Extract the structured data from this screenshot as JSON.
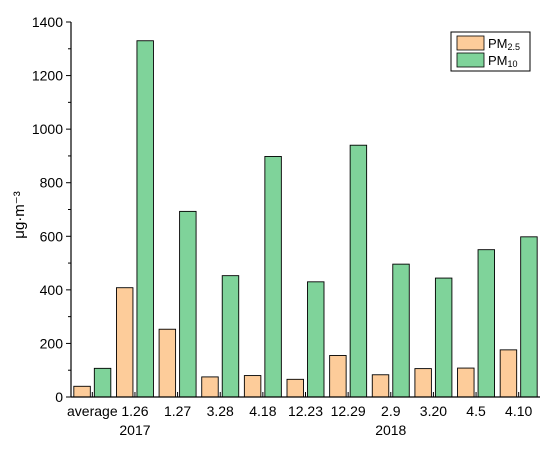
{
  "chart_data": {
    "type": "bar",
    "categories": [
      "average",
      "1.26",
      "1.27",
      "3.28",
      "4.18",
      "12.23",
      "12.29",
      "2.9",
      "3.20",
      "4.5",
      "4.10"
    ],
    "year_labels": [
      "2017",
      "2018"
    ],
    "ylabel": "μg·m⁻³",
    "ylim": [
      0,
      1400
    ],
    "yticks": [
      0,
      200,
      400,
      600,
      800,
      1000,
      1200,
      1400
    ],
    "grid": false,
    "legend_position": "top-right",
    "series": [
      {
        "name_main": "PM",
        "name_sub": "2.5",
        "color": "#fdcc9a",
        "values": [
          40,
          408,
          253,
          75,
          80,
          66,
          155,
          83,
          106,
          108,
          176
        ]
      },
      {
        "name_main": "PM",
        "name_sub": "10",
        "color": "#7fd39a",
        "values": [
          107,
          1330,
          693,
          453,
          898,
          430,
          940,
          496,
          444,
          550,
          598
        ]
      }
    ]
  }
}
